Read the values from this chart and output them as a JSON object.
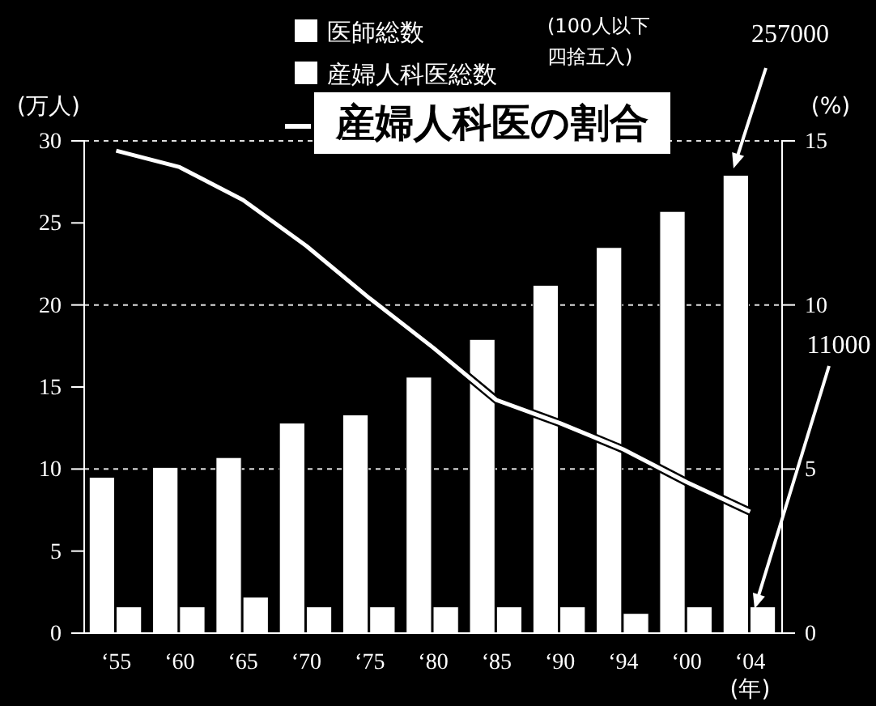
{
  "chart_data": {
    "type": "bar",
    "categories": [
      "‘55",
      "‘60",
      "‘65",
      "‘70",
      "‘75",
      "‘80",
      "‘85",
      "‘90",
      "‘94",
      "‘00",
      "‘04"
    ],
    "ylabel": "(万人)",
    "y2label": "(%)",
    "xlabel": "(年)",
    "series": [
      {
        "name": "医師総数",
        "color": "#ffffff",
        "values": [
          9.5,
          10.1,
          10.7,
          12.8,
          13.3,
          15.6,
          17.9,
          21.2,
          23.5,
          25.7,
          27.9
        ]
      },
      {
        "name": "産婦人科医総数",
        "color": "#ffffff",
        "values": [
          1.6,
          1.6,
          2.2,
          1.6,
          1.6,
          1.6,
          1.6,
          1.6,
          1.2,
          1.6,
          1.6
        ]
      },
      {
        "name": "産婦人科医の割合",
        "type": "line",
        "axis": "y2",
        "color": "#ffffff",
        "values": [
          14.7,
          14.2,
          13.2,
          11.8,
          10.2,
          8.7,
          7.1,
          6.4,
          5.6,
          4.6,
          3.7
        ]
      }
    ],
    "ylim": [
      0,
      30
    ],
    "yticks": [
      0,
      5,
      10,
      15,
      20,
      25,
      30
    ],
    "y2lim": [
      0,
      15
    ],
    "y2ticks": [
      0,
      5,
      10,
      15
    ],
    "grid": true,
    "legend": "top",
    "marker": "none",
    "line_style": "solid",
    "annotations": [
      "(100人以下",
      "四捨五入)",
      "257000",
      "11000"
    ]
  }
}
